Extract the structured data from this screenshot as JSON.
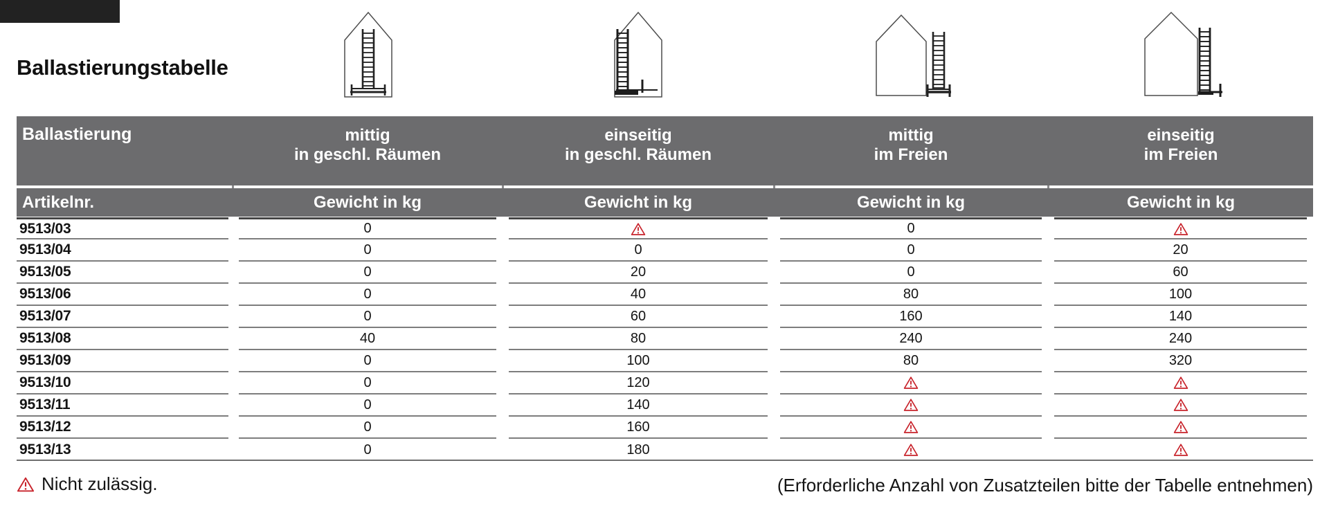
{
  "page": {
    "title": "Ballastierungstabelle",
    "footer_left_label": "Nicht zulässig.",
    "footer_right_label": "(Erforderliche Anzahl von Zusatzteilen bitte der Tabelle entnehmen)"
  },
  "colors": {
    "header_gray": "#6c6c6e",
    "warning_red": "#c8232b",
    "row_line_gray": "#7d7d7d",
    "header_underline_dark": "#454545"
  },
  "pictograms": [
    {
      "name": "ladder-centered-indoors-icon",
      "meaning": "mittig in geschl. Räumen"
    },
    {
      "name": "ladder-one-sided-indoors-icon",
      "meaning": "einseitig in geschl. Räumen"
    },
    {
      "name": "ladder-centered-outdoors-icon",
      "meaning": "mittig im Freien"
    },
    {
      "name": "ladder-one-sided-outdoors-icon",
      "meaning": "einseitig im Freien"
    }
  ],
  "table": {
    "header_row1_label": "Ballastierung",
    "columns": [
      {
        "line1": "mittig",
        "line2": "in geschl. Räumen"
      },
      {
        "line1": "einseitig",
        "line2": "in geschl. Räumen"
      },
      {
        "line1": "mittig",
        "line2": "im Freien"
      },
      {
        "line1": "einseitig",
        "line2": "im Freien"
      }
    ],
    "header_row2": {
      "article_label": "Artikelnr.",
      "weight_label": "Gewicht in kg"
    },
    "warning_symbol_meaning": "Nicht zulässig.",
    "rows": [
      {
        "article": "9513/03",
        "values": [
          "0",
          "warning",
          "0",
          "warning"
        ]
      },
      {
        "article": "9513/04",
        "values": [
          "0",
          "0",
          "0",
          "20"
        ]
      },
      {
        "article": "9513/05",
        "values": [
          "0",
          "20",
          "0",
          "60"
        ]
      },
      {
        "article": "9513/06",
        "values": [
          "0",
          "40",
          "80",
          "100"
        ]
      },
      {
        "article": "9513/07",
        "values": [
          "0",
          "60",
          "160",
          "140"
        ]
      },
      {
        "article": "9513/08",
        "values": [
          "40",
          "80",
          "240",
          "240"
        ]
      },
      {
        "article": "9513/09",
        "values": [
          "0",
          "100",
          "80",
          "320"
        ]
      },
      {
        "article": "9513/10",
        "values": [
          "0",
          "120",
          "warning",
          "warning"
        ]
      },
      {
        "article": "9513/11",
        "values": [
          "0",
          "140",
          "warning",
          "warning"
        ]
      },
      {
        "article": "9513/12",
        "values": [
          "0",
          "160",
          "warning",
          "warning"
        ]
      },
      {
        "article": "9513/13",
        "values": [
          "0",
          "180",
          "warning",
          "warning"
        ]
      }
    ]
  }
}
